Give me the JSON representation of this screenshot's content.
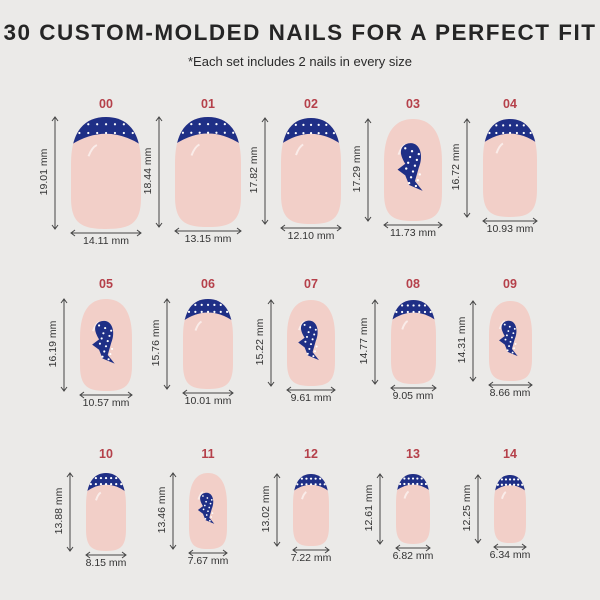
{
  "header": {
    "title": "30 CUSTOM-MOLDED NAILS FOR A PERFECT FIT",
    "subtitle": "*Each set includes 2 nails in every size"
  },
  "colors": {
    "nail": "#f2cfc8",
    "tip": "#1f2f86",
    "dot": "#ffffff",
    "number": "#b5404a",
    "background": "#ebeae8"
  },
  "nails": [
    {
      "num": "00",
      "height": "19.01 mm",
      "width": "14.11 mm",
      "design": "french-tip"
    },
    {
      "num": "01",
      "height": "18.44 mm",
      "width": "13.15 mm",
      "design": "french-tip"
    },
    {
      "num": "02",
      "height": "17.82 mm",
      "width": "12.10 mm",
      "design": "french-tip"
    },
    {
      "num": "03",
      "height": "17.29 mm",
      "width": "11.73 mm",
      "design": "whale-shark"
    },
    {
      "num": "04",
      "height": "16.72 mm",
      "width": "10.93 mm",
      "design": "french-tip"
    },
    {
      "num": "05",
      "height": "16.19 mm",
      "width": "10.57 mm",
      "design": "whale-shark"
    },
    {
      "num": "06",
      "height": "15.76 mm",
      "width": "10.01 mm",
      "design": "french-tip"
    },
    {
      "num": "07",
      "height": "15.22 mm",
      "width": "9.61 mm",
      "design": "whale-shark"
    },
    {
      "num": "08",
      "height": "14.77 mm",
      "width": "9.05 mm",
      "design": "french-tip"
    },
    {
      "num": "09",
      "height": "14.31 mm",
      "width": "8.66 mm",
      "design": "whale-shark"
    },
    {
      "num": "10",
      "height": "13.88 mm",
      "width": "8.15 mm",
      "design": "french-tip"
    },
    {
      "num": "11",
      "height": "13.46 mm",
      "width": "7.67 mm",
      "design": "whale-shark"
    },
    {
      "num": "12",
      "height": "13.02 mm",
      "width": "7.22 mm",
      "design": "french-tip"
    },
    {
      "num": "13",
      "height": "12.61 mm",
      "width": "6.82 mm",
      "design": "french-tip"
    },
    {
      "num": "14",
      "height": "12.25 mm",
      "width": "6.34 mm",
      "design": "french-tip"
    }
  ]
}
